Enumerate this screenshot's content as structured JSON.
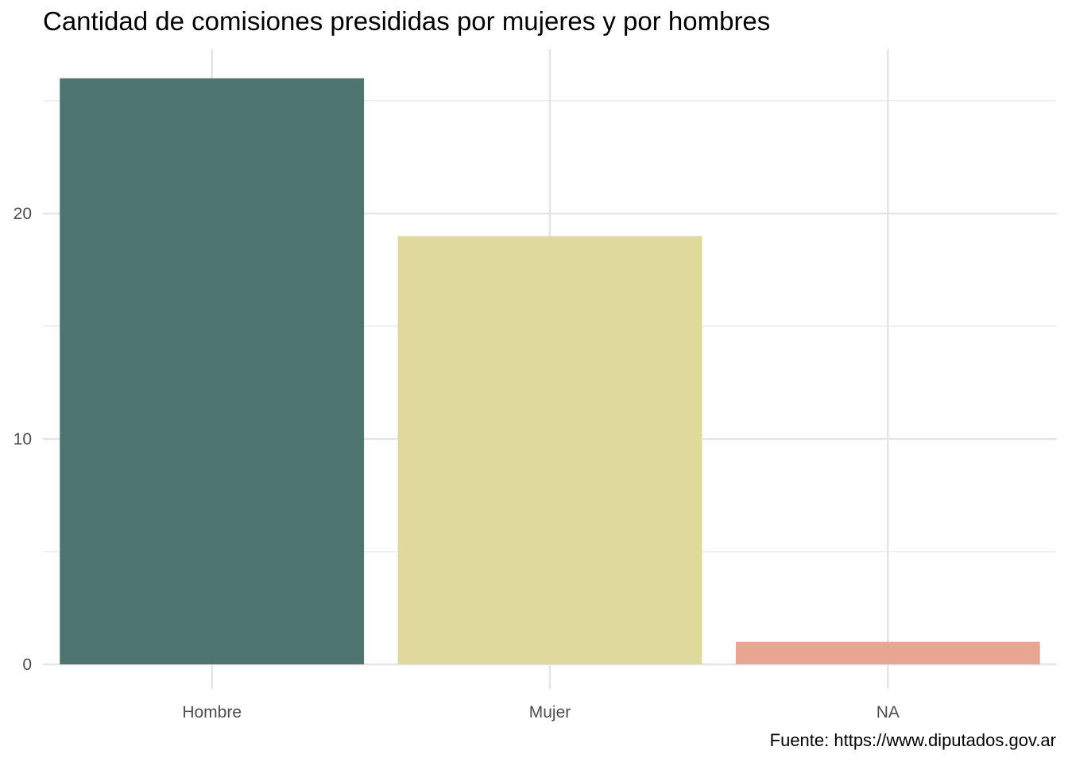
{
  "chart_data": {
    "type": "bar",
    "title": "Cantidad de comisiones presididas por mujeres y por hombres",
    "caption": "Fuente: https://www.diputados.gov.ar",
    "xlabel": "",
    "ylabel": "",
    "categories": [
      "Hombre",
      "Mujer",
      "NA"
    ],
    "values": [
      26,
      19,
      1
    ],
    "colors": [
      "#4e7470",
      "#dfda9b",
      "#e8a592"
    ],
    "ylim": [
      0,
      26
    ],
    "y_ticks": [
      0,
      10,
      20
    ],
    "y_tick_labels": [
      "0",
      "10",
      "20"
    ],
    "grid": true,
    "legend": "none"
  }
}
